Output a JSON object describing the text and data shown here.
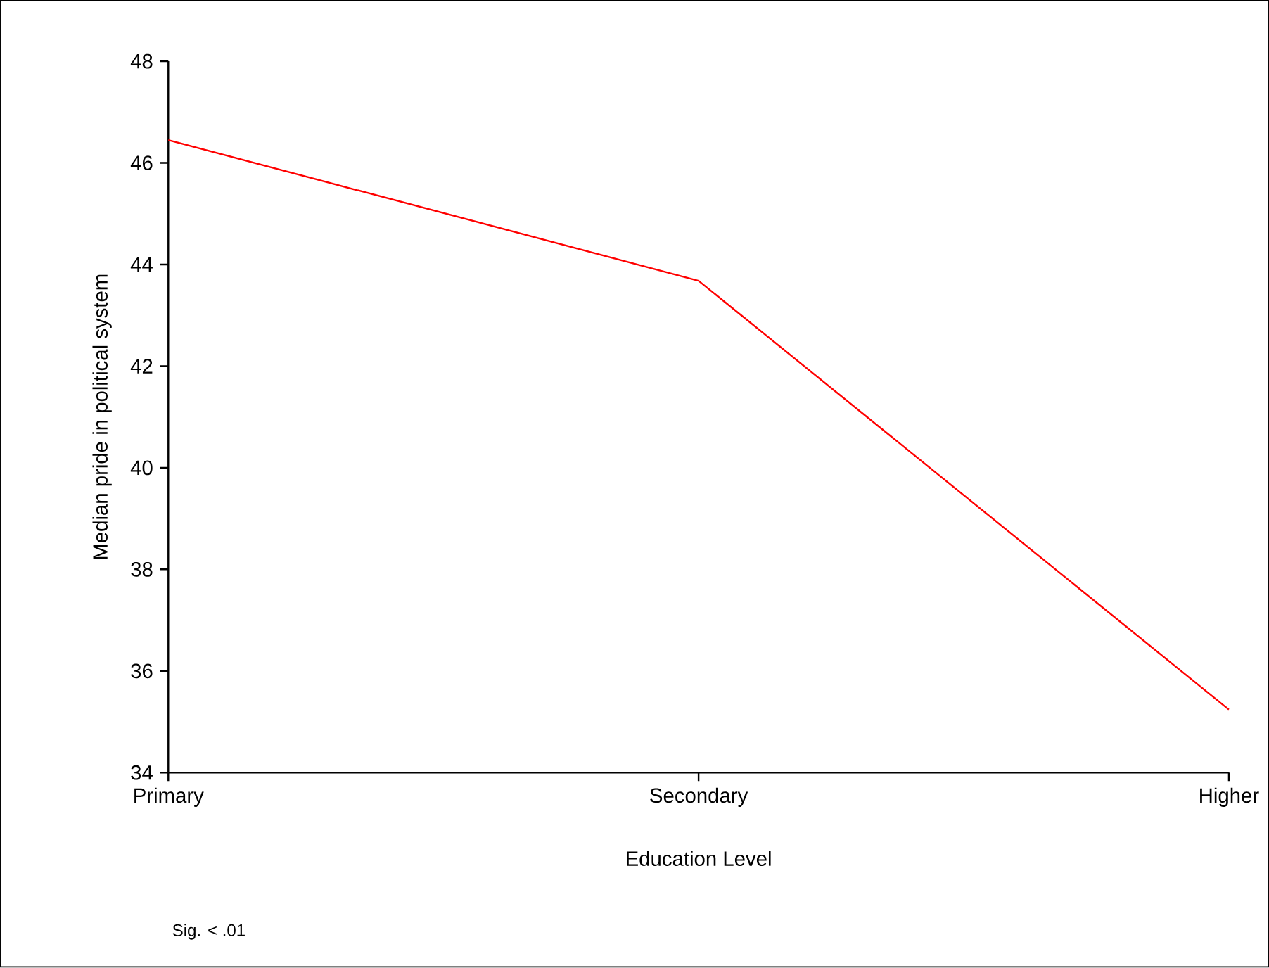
{
  "chart_data": {
    "type": "line",
    "xlabel": "Education Level",
    "ylabel": "Median pride in political system",
    "categories": [
      "Primary",
      "Secondary",
      "Higher"
    ],
    "series": [
      {
        "color": "#ff0000",
        "values": [
          46.45,
          43.68,
          35.24
        ]
      }
    ],
    "ylim": [
      34,
      48
    ],
    "yticks": [
      34,
      36,
      38,
      40,
      42,
      44,
      46,
      48
    ],
    "annotations": [
      "Sig. < .01"
    ],
    "grid": false
  }
}
